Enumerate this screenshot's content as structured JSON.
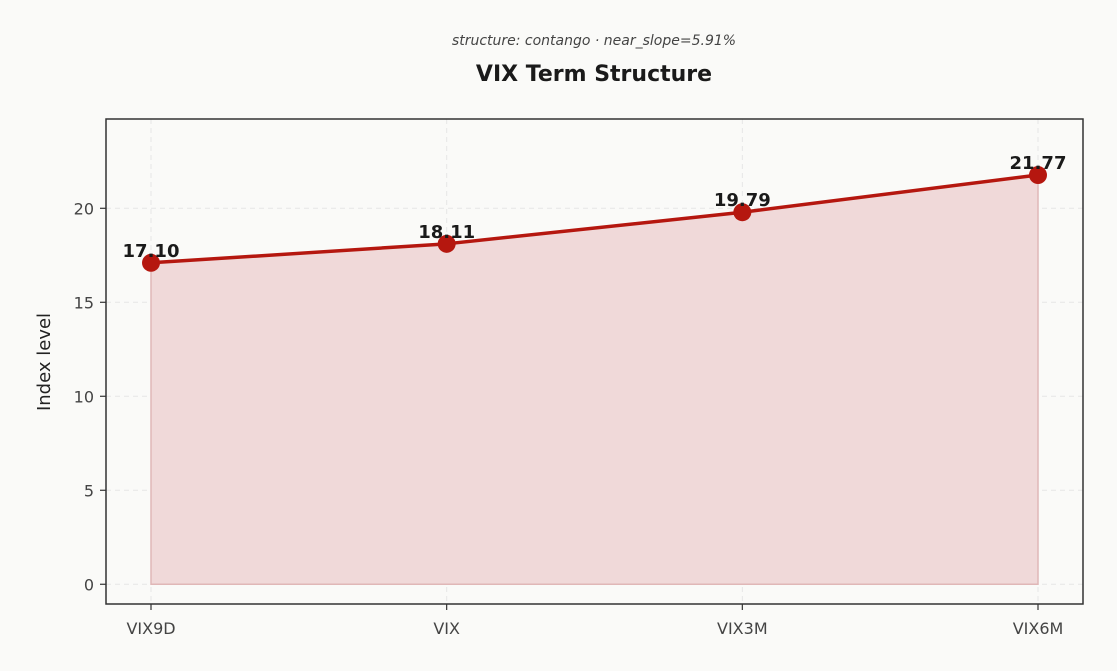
{
  "chart_data": {
    "type": "area",
    "title": "VIX Term Structure",
    "subtitle": "structure: contango · near_slope=5.91%",
    "xlabel": "",
    "ylabel": "Index level",
    "categories": [
      "VIX9D",
      "VIX",
      "VIX3M",
      "VIX6M"
    ],
    "values": [
      17.1,
      18.11,
      19.79,
      21.77
    ],
    "data_labels": [
      "17.10",
      "18.11",
      "19.79",
      "21.77"
    ],
    "ylim": [
      -1.05,
      24.75
    ],
    "yticks": [
      0,
      5,
      10,
      15,
      20
    ],
    "grid": true,
    "colors": {
      "line": "#b5170f",
      "fill": "#f0d9d9",
      "fill_edge": "#e0b7b7",
      "grid": "#e6e6e6",
      "background": "#fafaf8",
      "axes": "#333333"
    }
  }
}
